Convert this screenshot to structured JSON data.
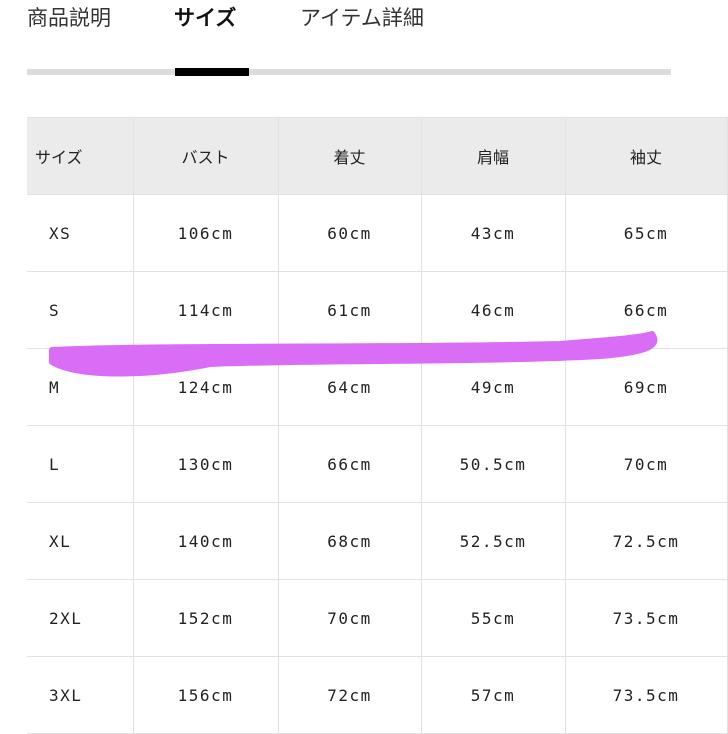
{
  "tabs": [
    {
      "label": "商品説明",
      "active": false
    },
    {
      "label": "サイズ",
      "active": true
    },
    {
      "label": "アイテム詳細",
      "active": false
    }
  ],
  "table": {
    "headers": [
      "サイズ",
      "バスト",
      "着丈",
      "肩幅",
      "袖丈"
    ],
    "rows": [
      [
        "XS",
        "106cm",
        "60cm",
        "43cm",
        "65cm"
      ],
      [
        "S",
        "114cm",
        "61cm",
        "46cm",
        "66cm"
      ],
      [
        "M",
        "124cm",
        "64cm",
        "49cm",
        "69cm"
      ],
      [
        "L",
        "130cm",
        "66cm",
        "50.5cm",
        "70cm"
      ],
      [
        "XL",
        "140cm",
        "68cm",
        "52.5cm",
        "72.5cm"
      ],
      [
        "2XL",
        "152cm",
        "70cm",
        "55cm",
        "73.5cm"
      ],
      [
        "3XL",
        "156cm",
        "72cm",
        "57cm",
        "73.5cm"
      ]
    ]
  },
  "colors": {
    "highlight_stroke": "#d966f5",
    "header_bg": "#ebebeb",
    "active_indicator": "#000000"
  }
}
